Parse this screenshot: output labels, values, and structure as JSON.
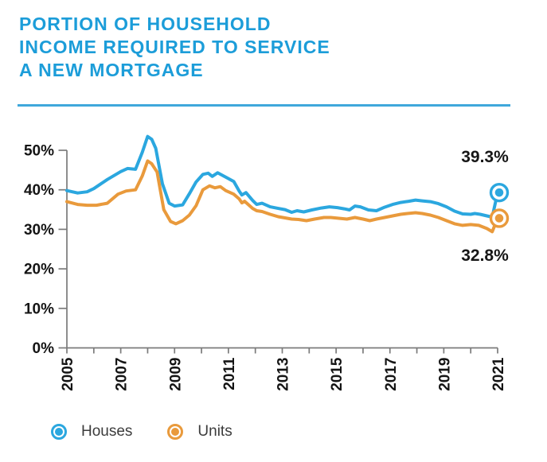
{
  "title": {
    "lines": [
      "PORTION OF HOUSEHOLD",
      "INCOME REQUIRED TO SERVICE",
      "A NEW MORTGAGE"
    ]
  },
  "colors": {
    "title_blue": "#1C9DD9",
    "divider_blue": "#3FA8DB",
    "axis_gray": "#7B7B7B",
    "tick_text": "#141414",
    "houses_blue": "#2BA7DF",
    "units_orange": "#E99A3C"
  },
  "chart_data": {
    "type": "line",
    "title": "PORTION OF HOUSEHOLD INCOME REQUIRED TO SERVICE A NEW MORTGAGE",
    "xlabel": "",
    "ylabel": "",
    "xlim": [
      2005,
      2021
    ],
    "ylim": [
      0,
      50
    ],
    "grid": false,
    "legend_position": "bottom",
    "y_tick_values": [
      0,
      10,
      20,
      30,
      40,
      50
    ],
    "y_tick_labels": [
      "0%",
      "10%",
      "20%",
      "30%",
      "40%",
      "50%"
    ],
    "x_tick_labeled_years": [
      2005,
      2007,
      2009,
      2011,
      2013,
      2015,
      2017,
      2019,
      2021
    ],
    "x_minor_tick_every": 1,
    "series": [
      {
        "name": "Houses",
        "color": "#2BA7DF",
        "end_label": "39.3%",
        "end_value": 39.3,
        "points": [
          [
            2005.0,
            39.8
          ],
          [
            2005.4,
            39.2
          ],
          [
            2005.75,
            39.5
          ],
          [
            2006.0,
            40.3
          ],
          [
            2006.5,
            42.6
          ],
          [
            2007.0,
            44.6
          ],
          [
            2007.25,
            45.4
          ],
          [
            2007.55,
            45.2
          ],
          [
            2007.8,
            49.5
          ],
          [
            2008.0,
            53.5
          ],
          [
            2008.15,
            52.8
          ],
          [
            2008.3,
            50.5
          ],
          [
            2008.55,
            41.5
          ],
          [
            2008.8,
            36.6
          ],
          [
            2009.0,
            35.9
          ],
          [
            2009.3,
            36.2
          ],
          [
            2009.55,
            39.0
          ],
          [
            2009.8,
            42.0
          ],
          [
            2010.05,
            43.9
          ],
          [
            2010.25,
            44.2
          ],
          [
            2010.4,
            43.4
          ],
          [
            2010.6,
            44.3
          ],
          [
            2010.9,
            43.2
          ],
          [
            2011.2,
            42.1
          ],
          [
            2011.4,
            39.7
          ],
          [
            2011.5,
            38.7
          ],
          [
            2011.65,
            39.3
          ],
          [
            2011.9,
            37.3
          ],
          [
            2012.05,
            36.3
          ],
          [
            2012.25,
            36.6
          ],
          [
            2012.55,
            35.7
          ],
          [
            2012.85,
            35.3
          ],
          [
            2013.1,
            35.0
          ],
          [
            2013.35,
            34.3
          ],
          [
            2013.55,
            34.7
          ],
          [
            2013.8,
            34.4
          ],
          [
            2014.1,
            34.9
          ],
          [
            2014.45,
            35.4
          ],
          [
            2014.75,
            35.7
          ],
          [
            2015.05,
            35.5
          ],
          [
            2015.3,
            35.2
          ],
          [
            2015.5,
            34.9
          ],
          [
            2015.7,
            35.9
          ],
          [
            2015.9,
            35.7
          ],
          [
            2016.2,
            34.9
          ],
          [
            2016.5,
            34.7
          ],
          [
            2016.8,
            35.6
          ],
          [
            2017.1,
            36.3
          ],
          [
            2017.4,
            36.8
          ],
          [
            2017.7,
            37.1
          ],
          [
            2017.95,
            37.4
          ],
          [
            2018.2,
            37.2
          ],
          [
            2018.5,
            37.0
          ],
          [
            2018.8,
            36.5
          ],
          [
            2019.1,
            35.7
          ],
          [
            2019.4,
            34.6
          ],
          [
            2019.7,
            33.9
          ],
          [
            2020.0,
            33.8
          ],
          [
            2020.15,
            34.0
          ],
          [
            2020.35,
            33.8
          ],
          [
            2020.6,
            33.4
          ],
          [
            2020.8,
            33.1
          ],
          [
            2021.0,
            39.3
          ]
        ]
      },
      {
        "name": "Units",
        "color": "#E99A3C",
        "end_label": "32.8%",
        "end_value": 32.8,
        "points": [
          [
            2005.0,
            37.0
          ],
          [
            2005.4,
            36.3
          ],
          [
            2005.75,
            36.1
          ],
          [
            2006.1,
            36.1
          ],
          [
            2006.5,
            36.6
          ],
          [
            2006.9,
            38.9
          ],
          [
            2007.2,
            39.7
          ],
          [
            2007.55,
            40.0
          ],
          [
            2007.8,
            43.5
          ],
          [
            2008.0,
            47.3
          ],
          [
            2008.15,
            46.6
          ],
          [
            2008.35,
            44.5
          ],
          [
            2008.6,
            35.0
          ],
          [
            2008.85,
            32.0
          ],
          [
            2009.05,
            31.4
          ],
          [
            2009.3,
            32.2
          ],
          [
            2009.55,
            33.6
          ],
          [
            2009.8,
            36.0
          ],
          [
            2010.05,
            40.0
          ],
          [
            2010.3,
            41.0
          ],
          [
            2010.5,
            40.5
          ],
          [
            2010.7,
            40.8
          ],
          [
            2010.9,
            39.8
          ],
          [
            2011.2,
            38.9
          ],
          [
            2011.4,
            37.7
          ],
          [
            2011.5,
            36.7
          ],
          [
            2011.6,
            37.1
          ],
          [
            2011.9,
            35.3
          ],
          [
            2012.05,
            34.7
          ],
          [
            2012.25,
            34.5
          ],
          [
            2012.55,
            33.8
          ],
          [
            2012.85,
            33.2
          ],
          [
            2013.1,
            32.9
          ],
          [
            2013.35,
            32.6
          ],
          [
            2013.6,
            32.5
          ],
          [
            2013.9,
            32.2
          ],
          [
            2014.2,
            32.6
          ],
          [
            2014.55,
            33.0
          ],
          [
            2014.8,
            33.0
          ],
          [
            2015.1,
            32.8
          ],
          [
            2015.4,
            32.6
          ],
          [
            2015.7,
            33.0
          ],
          [
            2016.0,
            32.6
          ],
          [
            2016.25,
            32.2
          ],
          [
            2016.5,
            32.6
          ],
          [
            2016.8,
            33.0
          ],
          [
            2017.1,
            33.4
          ],
          [
            2017.4,
            33.8
          ],
          [
            2017.65,
            34.0
          ],
          [
            2017.95,
            34.2
          ],
          [
            2018.2,
            34.0
          ],
          [
            2018.5,
            33.6
          ],
          [
            2018.8,
            33.0
          ],
          [
            2019.1,
            32.2
          ],
          [
            2019.4,
            31.4
          ],
          [
            2019.7,
            31.0
          ],
          [
            2020.0,
            31.2
          ],
          [
            2020.3,
            31.0
          ],
          [
            2020.6,
            30.2
          ],
          [
            2020.8,
            29.4
          ],
          [
            2021.0,
            32.8
          ]
        ]
      }
    ]
  },
  "legend": {
    "items": [
      {
        "label": "Houses"
      },
      {
        "label": "Units"
      }
    ]
  }
}
